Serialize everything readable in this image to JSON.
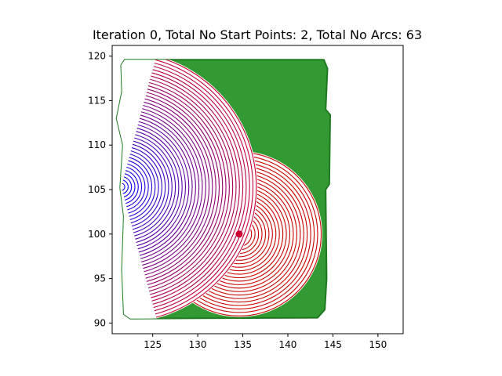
{
  "chart_data": {
    "type": "scatter",
    "title": "Iteration 0, Total No Start Points: 2, Total No Arcs: 63",
    "xlabel": "",
    "ylabel": "",
    "xlim": [
      120.5,
      152.8
    ],
    "ylim": [
      88.8,
      121.2
    ],
    "x_ticks": [
      125,
      130,
      135,
      140,
      145,
      150
    ],
    "y_ticks": [
      90,
      95,
      100,
      105,
      110,
      115,
      120
    ],
    "x_tick_labels": [
      "125",
      "130",
      "135",
      "140",
      "145",
      "150"
    ],
    "y_tick_labels": [
      "90",
      "95",
      "100",
      "105",
      "110",
      "115",
      "120"
    ],
    "grid": false,
    "legend": "none",
    "region": {
      "name": "region",
      "color": "#339933",
      "edge_color": "#1e7a1e",
      "outline": [
        [
          121.9,
          119.6
        ],
        [
          144.0,
          119.6
        ],
        [
          144.4,
          118.6
        ],
        [
          144.2,
          114.0
        ],
        [
          144.7,
          113.4
        ],
        [
          144.6,
          105.6
        ],
        [
          144.2,
          105.0
        ],
        [
          144.3,
          95.0
        ],
        [
          144.1,
          91.5
        ],
        [
          143.3,
          90.6
        ],
        [
          122.5,
          90.5
        ],
        [
          121.8,
          91.0
        ],
        [
          121.6,
          96.0
        ],
        [
          121.8,
          102.0
        ],
        [
          121.4,
          105.2
        ],
        [
          121.7,
          110.0
        ],
        [
          121.0,
          113.0
        ],
        [
          121.6,
          116.0
        ],
        [
          121.5,
          119.0
        ]
      ]
    },
    "start_points": [
      {
        "name": "start-1",
        "x": 121.5,
        "y": 105.3,
        "arc_count": 40,
        "r_min": 0.4,
        "r_max": 15.0,
        "color_from": "#0000ff",
        "color_to": "#cc0033",
        "arc_from_deg": -75,
        "arc_to_deg": 75
      },
      {
        "name": "start-2",
        "x": 134.6,
        "y": 100.0,
        "arc_count": 23,
        "r_min": 0.6,
        "r_max": 9.1,
        "color_from": "#cc0000",
        "color_to": "#cc0000",
        "arc_from_deg": 0,
        "arc_to_deg": 360
      }
    ],
    "markers": [
      {
        "name": "start-point-marker",
        "x": 134.6,
        "y": 100.0,
        "color": "#cc0033"
      }
    ]
  }
}
